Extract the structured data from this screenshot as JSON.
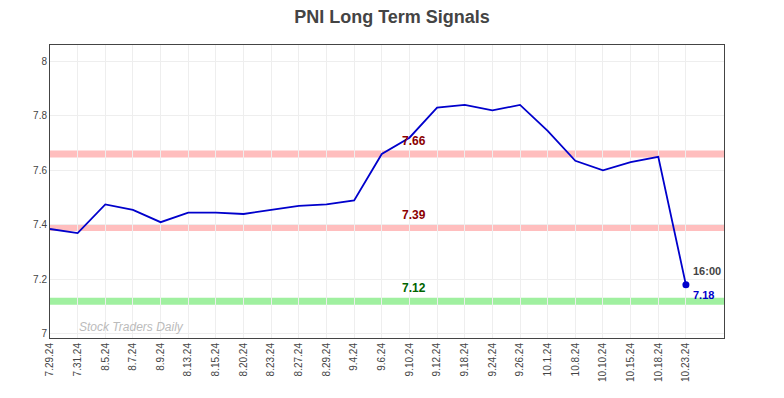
{
  "chart_data": {
    "type": "line",
    "title": "PNI Long Term Signals",
    "categories": [
      "7.29.24",
      "7.31.24",
      "8.5.24",
      "8.7.24",
      "8.9.24",
      "8.13.24",
      "8.15.24",
      "8.20.24",
      "8.23.24",
      "8.27.24",
      "8.29.24",
      "9.4.24",
      "9.6.24",
      "9.10.24",
      "9.12.24",
      "9.18.24",
      "9.24.24",
      "9.26.24",
      "10.1.24",
      "10.8.24",
      "10.10.24",
      "10.15.24",
      "10.18.24",
      "10.23.24"
    ],
    "values": [
      7.385,
      7.37,
      7.475,
      7.455,
      7.41,
      7.445,
      7.445,
      7.44,
      7.455,
      7.47,
      7.475,
      7.49,
      7.66,
      7.72,
      7.83,
      7.84,
      7.82,
      7.84,
      7.745,
      7.635,
      7.6,
      7.63,
      7.65,
      7.18
    ],
    "color": "#0000cc",
    "ylim": [
      6.985,
      8.06
    ],
    "yticks": [
      7,
      7.2,
      7.4,
      7.6,
      7.8,
      8
    ],
    "grid": true,
    "hlines": [
      {
        "value": 7.66,
        "label": "7.66",
        "color": "#ffb3b3",
        "label_color": "#8b0000"
      },
      {
        "value": 7.39,
        "label": "7.39",
        "color": "#ffb3b3",
        "label_color": "#8b0000"
      },
      {
        "value": 7.12,
        "label": "7.12",
        "color": "#90ee90",
        "label_color": "#006400"
      }
    ],
    "last_point": {
      "time_label": "16:00",
      "value_label": "7.18",
      "color": "#0000cc"
    },
    "watermark": {
      "text": "Stock Traders Daily",
      "color": "#bbbbbb"
    }
  }
}
